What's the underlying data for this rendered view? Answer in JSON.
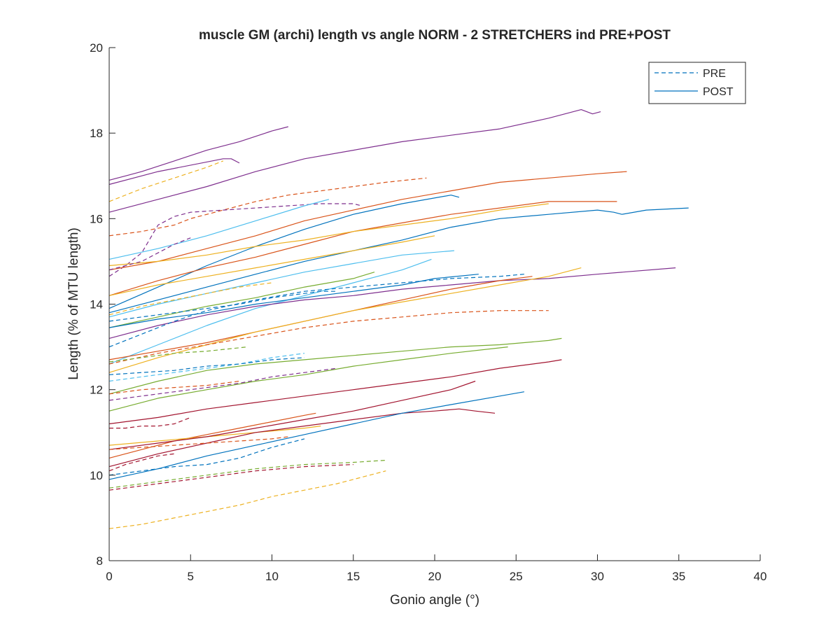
{
  "chart_data": {
    "type": "line",
    "title": "muscle GM (archi) length vs angle NORM - 2 STRETCHERS ind PRE+POST",
    "xlabel": "Gonio angle (°)",
    "ylabel": "Length (% of MTU length)",
    "xlim": [
      0,
      40
    ],
    "ylim": [
      8,
      20
    ],
    "xticks": [
      "0",
      "5",
      "10",
      "15",
      "20",
      "25",
      "30",
      "35",
      "40"
    ],
    "yticks": [
      "8",
      "10",
      "12",
      "14",
      "16",
      "18",
      "20"
    ],
    "grid": false,
    "legend_position": "top-right",
    "legend": [
      {
        "label": "PRE",
        "style": "dashed",
        "color": "#0072BD"
      },
      {
        "label": "POST",
        "style": "solid",
        "color": "#0072BD"
      }
    ],
    "colors": {
      "blue": "#0072BD",
      "orange": "#D95319",
      "yellow": "#EDB120",
      "purple": "#7E2F8E",
      "green": "#77AC30",
      "cyan": "#4DBEEE",
      "red": "#A2142F"
    },
    "series": [
      {
        "color": "purple",
        "style": "solid",
        "x": [
          0,
          1,
          2,
          4,
          6,
          8,
          10,
          11
        ],
        "y": [
          16.9,
          17.0,
          17.1,
          17.35,
          17.6,
          17.8,
          18.05,
          18.15
        ]
      },
      {
        "color": "purple",
        "style": "solid",
        "x": [
          0,
          3,
          7,
          7.5,
          8
        ],
        "y": [
          16.8,
          17.1,
          17.4,
          17.4,
          17.3
        ]
      },
      {
        "color": "purple",
        "style": "solid",
        "x": [
          0,
          3,
          6,
          9,
          12,
          15,
          18,
          21,
          24,
          27,
          29,
          29.7,
          30.2
        ],
        "y": [
          16.15,
          16.45,
          16.75,
          17.1,
          17.4,
          17.6,
          17.8,
          17.95,
          18.1,
          18.35,
          18.55,
          18.45,
          18.5
        ]
      },
      {
        "color": "yellow",
        "style": "dashed",
        "x": [
          0,
          2,
          4,
          6,
          7
        ],
        "y": [
          16.4,
          16.7,
          16.95,
          17.2,
          17.35
        ]
      },
      {
        "color": "orange",
        "style": "dashed",
        "x": [
          0,
          2,
          4,
          5,
          7,
          9,
          11,
          14,
          17,
          19.5
        ],
        "y": [
          15.6,
          15.7,
          15.85,
          16.0,
          16.2,
          16.4,
          16.55,
          16.7,
          16.85,
          16.95
        ]
      },
      {
        "color": "purple",
        "style": "dashed",
        "x": [
          0,
          1,
          2,
          3,
          4,
          5,
          7,
          9,
          11,
          13,
          15,
          15.5
        ],
        "y": [
          14.65,
          14.9,
          15.2,
          15.85,
          16.05,
          16.15,
          16.2,
          16.25,
          16.3,
          16.35,
          16.35,
          16.3
        ]
      },
      {
        "color": "orange",
        "style": "solid",
        "x": [
          0,
          3,
          6,
          9,
          12,
          15,
          18,
          21,
          24,
          27,
          30,
          31.8
        ],
        "y": [
          14.8,
          15.0,
          15.3,
          15.6,
          15.95,
          16.2,
          16.45,
          16.65,
          16.85,
          16.95,
          17.05,
          17.1
        ]
      },
      {
        "color": "cyan",
        "style": "solid",
        "x": [
          0,
          3,
          6,
          9,
          12,
          13.5
        ],
        "y": [
          15.05,
          15.3,
          15.6,
          15.95,
          16.3,
          16.45
        ]
      },
      {
        "color": "blue",
        "style": "solid",
        "x": [
          0,
          3,
          6,
          9,
          12,
          15,
          18,
          21,
          21.5
        ],
        "y": [
          13.9,
          14.4,
          14.9,
          15.35,
          15.75,
          16.1,
          16.35,
          16.55,
          16.5
        ]
      },
      {
        "color": "orange",
        "style": "solid",
        "x": [
          0,
          3,
          6,
          9,
          12,
          15,
          18,
          21,
          24,
          27,
          29,
          31.2
        ],
        "y": [
          14.2,
          14.55,
          14.85,
          15.1,
          15.4,
          15.7,
          15.9,
          16.1,
          16.25,
          16.4,
          16.4,
          16.4
        ]
      },
      {
        "color": "blue",
        "style": "solid",
        "x": [
          0,
          3,
          6,
          9,
          12,
          15,
          18,
          21,
          24,
          27,
          30,
          31,
          31.5,
          33,
          35.6
        ],
        "y": [
          13.8,
          14.1,
          14.4,
          14.7,
          15.0,
          15.25,
          15.5,
          15.8,
          16.0,
          16.1,
          16.2,
          16.15,
          16.1,
          16.2,
          16.25
        ]
      },
      {
        "color": "yellow",
        "style": "solid",
        "x": [
          0,
          3,
          6,
          9,
          12,
          15,
          18,
          21,
          24,
          27
        ],
        "y": [
          14.9,
          15.0,
          15.15,
          15.35,
          15.5,
          15.7,
          15.85,
          16.0,
          16.2,
          16.35
        ]
      },
      {
        "color": "purple",
        "style": "dashed",
        "x": [
          0,
          1,
          2,
          3,
          4,
          5
        ],
        "y": [
          14.8,
          14.9,
          15.0,
          15.2,
          15.4,
          15.55
        ]
      },
      {
        "color": "yellow",
        "style": "solid",
        "x": [
          0,
          3,
          6,
          9,
          12,
          15,
          18,
          20
        ],
        "y": [
          14.2,
          14.45,
          14.65,
          14.85,
          15.05,
          15.25,
          15.45,
          15.6
        ]
      },
      {
        "color": "cyan",
        "style": "solid",
        "x": [
          0,
          3,
          6,
          9,
          12,
          15,
          18,
          21.2
        ],
        "y": [
          13.7,
          14.0,
          14.25,
          14.5,
          14.75,
          14.95,
          15.15,
          15.25
        ]
      },
      {
        "color": "cyan",
        "style": "solid",
        "x": [
          0,
          3,
          6,
          9,
          12,
          15,
          18,
          19.8
        ],
        "y": [
          12.6,
          13.05,
          13.5,
          13.9,
          14.2,
          14.5,
          14.8,
          15.05
        ]
      },
      {
        "color": "yellow",
        "style": "dashed",
        "x": [
          0,
          2,
          4,
          6,
          8,
          10
        ],
        "y": [
          13.75,
          13.95,
          14.1,
          14.25,
          14.4,
          14.5
        ]
      },
      {
        "color": "green",
        "style": "solid",
        "x": [
          0,
          3,
          6,
          9,
          12,
          15,
          16.3
        ],
        "y": [
          13.45,
          13.7,
          13.95,
          14.15,
          14.4,
          14.6,
          14.75
        ]
      },
      {
        "color": "purple",
        "style": "solid",
        "x": [
          0,
          3,
          6,
          9,
          12,
          15,
          18,
          21,
          24,
          27,
          30,
          34.8
        ],
        "y": [
          13.2,
          13.5,
          13.75,
          13.95,
          14.1,
          14.2,
          14.35,
          14.45,
          14.55,
          14.6,
          14.7,
          14.85
        ]
      },
      {
        "color": "blue",
        "style": "solid",
        "x": [
          0,
          3,
          6,
          9,
          12,
          15,
          18,
          20,
          22.7
        ],
        "y": [
          13.45,
          13.65,
          13.8,
          14.0,
          14.15,
          14.3,
          14.45,
          14.6,
          14.7
        ]
      },
      {
        "color": "blue",
        "style": "dashed",
        "x": [
          0,
          2,
          4,
          6,
          9,
          12,
          15,
          18,
          21,
          24,
          25.5
        ],
        "y": [
          13.0,
          13.3,
          13.6,
          13.85,
          14.1,
          14.3,
          14.4,
          14.5,
          14.6,
          14.65,
          14.7
        ]
      },
      {
        "color": "orange",
        "style": "solid",
        "x": [
          0,
          3,
          6,
          9,
          12,
          15,
          18,
          21,
          24,
          26
        ],
        "y": [
          12.7,
          12.9,
          13.1,
          13.35,
          13.6,
          13.85,
          14.1,
          14.35,
          14.55,
          14.65
        ]
      },
      {
        "color": "yellow",
        "style": "solid",
        "x": [
          0,
          3,
          6,
          9,
          12,
          15,
          18,
          21,
          24,
          27,
          29
        ],
        "y": [
          12.4,
          12.75,
          13.05,
          13.35,
          13.6,
          13.85,
          14.05,
          14.25,
          14.45,
          14.65,
          14.85
        ]
      },
      {
        "color": "blue",
        "style": "dashed",
        "x": [
          0,
          2,
          4,
          6,
          8,
          10,
          12,
          13,
          14
        ],
        "y": [
          13.6,
          13.7,
          13.8,
          13.9,
          14.0,
          14.15,
          14.25,
          14.3,
          14.3
        ]
      },
      {
        "color": "orange",
        "style": "dashed",
        "x": [
          0,
          3,
          6,
          9,
          12,
          15,
          18,
          21,
          24,
          27
        ],
        "y": [
          12.6,
          12.85,
          13.05,
          13.25,
          13.45,
          13.6,
          13.7,
          13.8,
          13.85,
          13.85
        ]
      },
      {
        "color": "green",
        "style": "dashed",
        "x": [
          0,
          2,
          4,
          6,
          8.5
        ],
        "y": [
          12.65,
          12.75,
          12.85,
          12.9,
          13.0
        ]
      },
      {
        "color": "cyan",
        "style": "dashed",
        "x": [
          0,
          2,
          4,
          6,
          8,
          10,
          12
        ],
        "y": [
          12.2,
          12.3,
          12.4,
          12.5,
          12.6,
          12.75,
          12.85
        ]
      },
      {
        "color": "blue",
        "style": "dashed",
        "x": [
          0,
          2,
          4,
          6,
          8,
          10,
          12
        ],
        "y": [
          12.35,
          12.4,
          12.45,
          12.55,
          12.6,
          12.7,
          12.75
        ]
      },
      {
        "color": "green",
        "style": "solid",
        "x": [
          0,
          3,
          6,
          9,
          12,
          15,
          18,
          21,
          24,
          27,
          27.8
        ],
        "y": [
          11.9,
          12.2,
          12.45,
          12.6,
          12.7,
          12.8,
          12.9,
          13.0,
          13.05,
          13.15,
          13.2
        ]
      },
      {
        "color": "green",
        "style": "solid",
        "x": [
          0,
          3,
          6,
          9,
          12,
          15,
          18,
          21,
          24.5
        ],
        "y": [
          11.5,
          11.8,
          12.0,
          12.2,
          12.35,
          12.55,
          12.7,
          12.85,
          13.0
        ]
      },
      {
        "color": "purple",
        "style": "dashed",
        "x": [
          0,
          2,
          4,
          6,
          8,
          10,
          12,
          14
        ],
        "y": [
          11.75,
          11.85,
          11.95,
          12.05,
          12.15,
          12.3,
          12.4,
          12.5
        ]
      },
      {
        "color": "orange",
        "style": "dashed",
        "x": [
          0,
          2,
          4,
          6,
          8
        ],
        "y": [
          11.9,
          12.0,
          12.05,
          12.1,
          12.2
        ]
      },
      {
        "color": "red",
        "style": "solid",
        "x": [
          0,
          3,
          6,
          9,
          12,
          15,
          18,
          21,
          24,
          27,
          27.8
        ],
        "y": [
          11.2,
          11.35,
          11.55,
          11.7,
          11.85,
          12.0,
          12.15,
          12.3,
          12.5,
          12.65,
          12.7
        ]
      },
      {
        "color": "red",
        "style": "dashed",
        "x": [
          0,
          1,
          2,
          3,
          4,
          5
        ],
        "y": [
          11.1,
          11.1,
          11.15,
          11.15,
          11.2,
          11.35
        ]
      },
      {
        "color": "orange",
        "style": "solid",
        "x": [
          0,
          2,
          4,
          6,
          8,
          10,
          12,
          12.7
        ],
        "y": [
          10.4,
          10.6,
          10.8,
          10.95,
          11.1,
          11.25,
          11.4,
          11.45
        ]
      },
      {
        "color": "yellow",
        "style": "solid",
        "x": [
          0,
          3,
          6,
          9,
          12,
          13
        ],
        "y": [
          10.7,
          10.8,
          10.9,
          11.0,
          11.1,
          11.15
        ]
      },
      {
        "color": "red",
        "style": "solid",
        "x": [
          0,
          3,
          6,
          9,
          12,
          15,
          18,
          21,
          22.5
        ],
        "y": [
          10.6,
          10.75,
          10.9,
          11.1,
          11.3,
          11.5,
          11.75,
          12.0,
          12.2
        ]
      },
      {
        "color": "red",
        "style": "solid",
        "x": [
          0,
          3,
          6,
          9,
          12,
          15,
          18,
          20,
          21.5,
          22.5,
          23.7
        ],
        "y": [
          10.2,
          10.5,
          10.75,
          11.0,
          11.15,
          11.3,
          11.45,
          11.5,
          11.55,
          11.5,
          11.45
        ]
      },
      {
        "color": "orange",
        "style": "dashed",
        "x": [
          0,
          2,
          4,
          6,
          8,
          10,
          11
        ],
        "y": [
          10.6,
          10.65,
          10.7,
          10.75,
          10.8,
          10.85,
          10.9
        ]
      },
      {
        "color": "red",
        "style": "dashed",
        "x": [
          0,
          1,
          2,
          3,
          4
        ],
        "y": [
          10.1,
          10.25,
          10.35,
          10.45,
          10.5
        ]
      },
      {
        "color": "blue",
        "style": "solid",
        "x": [
          0,
          3,
          6,
          9,
          12,
          15,
          18,
          21,
          24,
          25.5
        ],
        "y": [
          9.9,
          10.15,
          10.45,
          10.7,
          10.95,
          11.2,
          11.45,
          11.65,
          11.85,
          11.95
        ]
      },
      {
        "color": "blue",
        "style": "dashed",
        "x": [
          0,
          2,
          4,
          6,
          8,
          10,
          12
        ],
        "y": [
          10.0,
          10.1,
          10.2,
          10.25,
          10.4,
          10.65,
          10.85
        ]
      },
      {
        "color": "green",
        "style": "dashed",
        "x": [
          0,
          3,
          6,
          9,
          12,
          15,
          17
        ],
        "y": [
          9.7,
          9.85,
          10.0,
          10.15,
          10.25,
          10.3,
          10.35
        ]
      },
      {
        "color": "red",
        "style": "dashed",
        "x": [
          0,
          3,
          6,
          9,
          12,
          15
        ],
        "y": [
          9.65,
          9.8,
          9.95,
          10.1,
          10.2,
          10.25
        ]
      },
      {
        "color": "yellow",
        "style": "dashed",
        "x": [
          0,
          2,
          4,
          6,
          8,
          10,
          12,
          14,
          16,
          17
        ],
        "y": [
          8.75,
          8.85,
          9.0,
          9.15,
          9.3,
          9.5,
          9.65,
          9.8,
          10.0,
          10.1
        ]
      }
    ]
  }
}
